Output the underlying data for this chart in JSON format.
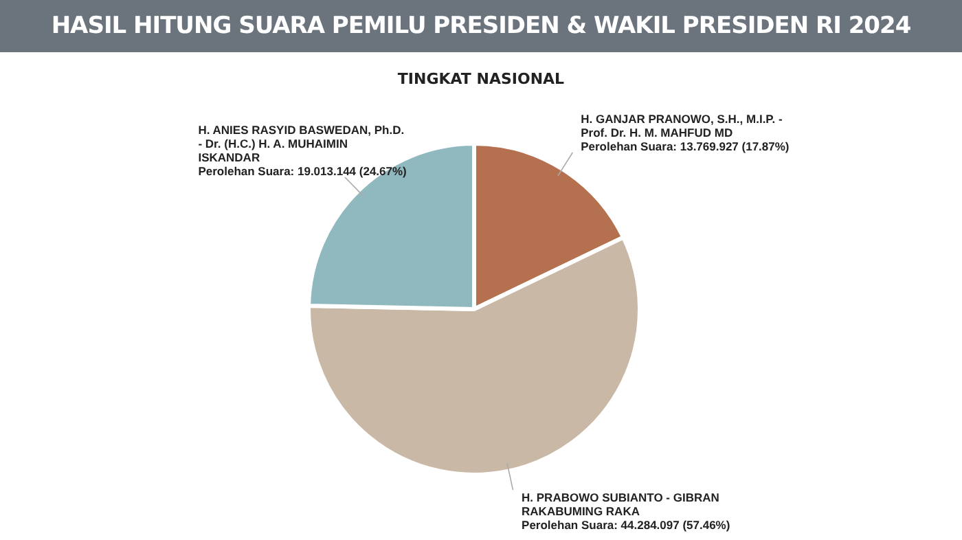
{
  "chart_data": {
    "type": "pie",
    "title": "HASIL HITUNG SUARA PEMILU PRESIDEN & WAKIL PRESIDEN RI 2024",
    "subtitle": "TINGKAT NASIONAL",
    "categories": [
      "H. GANJAR PRANOWO, S.H., M.I.P. - Prof. Dr. H. M. MAHFUD MD",
      "H. PRABOWO SUBIANTO - GIBRAN RAKABUMING RAKA",
      "H. ANIES RASYID BASWEDAN, Ph.D. - Dr. (H.C.) H. A. MUHAIMIN ISKANDAR"
    ],
    "values": [
      13769927,
      44284097,
      19013144
    ],
    "colors": [
      "#b5714f",
      "#c9b8a5",
      "#8fb9bf"
    ],
    "value_labels": [
      "Perolehan Suara: 13.769.927 (17.87%)",
      "Perolehan Suara: 44.284.097 (57.46%)",
      "Perolehan Suara: 19.013.144 (24.67%)"
    ],
    "legend": false
  }
}
